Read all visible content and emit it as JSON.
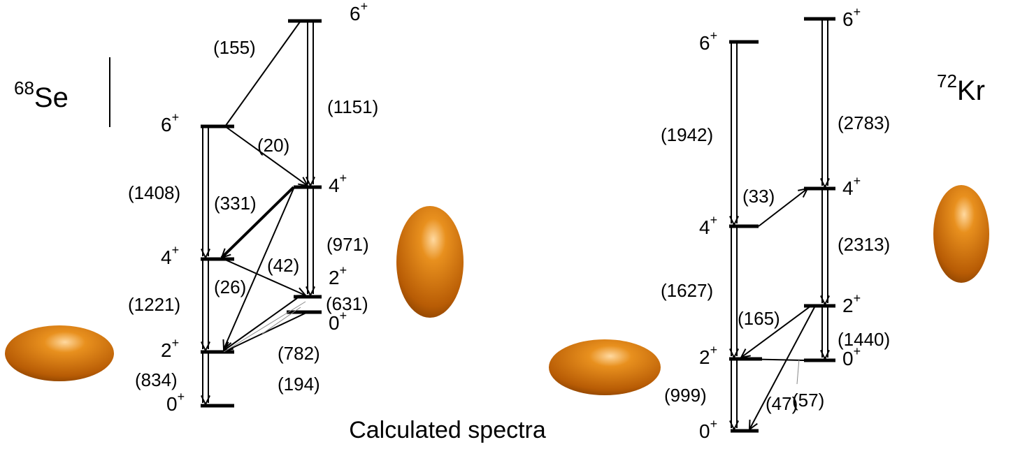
{
  "left": {
    "nucleus": {
      "mass": "68",
      "symbol": "Se"
    },
    "levels": [
      {
        "spin": "6",
        "parity": "+"
      },
      {
        "spin": "4",
        "parity": "+"
      },
      {
        "spin": "2",
        "parity": "+"
      },
      {
        "spin": "0",
        "parity": "+"
      },
      {
        "spin": "6",
        "parity": "+"
      },
      {
        "spin": "4",
        "parity": "+"
      },
      {
        "spin": "2",
        "parity": "+"
      },
      {
        "spin": "0",
        "parity": "+"
      }
    ],
    "transitions": [
      "(155)",
      "(1151)",
      "(20)",
      "(1408)",
      "(331)",
      "(971)",
      "(42)",
      "(26)",
      "(631)",
      "(1221)",
      "(782)",
      "(834)",
      "(194)"
    ]
  },
  "right": {
    "nucleus": {
      "mass": "72",
      "symbol": "Kr"
    },
    "levels": [
      {
        "spin": "6",
        "parity": "+"
      },
      {
        "spin": "4",
        "parity": "+"
      },
      {
        "spin": "2",
        "parity": "+"
      },
      {
        "spin": "0",
        "parity": "+"
      },
      {
        "spin": "6",
        "parity": "+"
      },
      {
        "spin": "4",
        "parity": "+"
      },
      {
        "spin": "2",
        "parity": "+"
      },
      {
        "spin": "0",
        "parity": "+"
      }
    ],
    "transitions": [
      "(1942)",
      "(2783)",
      "(33)",
      "(2313)",
      "(1627)",
      "(165)",
      "(1440)",
      "(999)",
      "(57)",
      "(47)"
    ]
  },
  "caption": "Calculated spectra"
}
